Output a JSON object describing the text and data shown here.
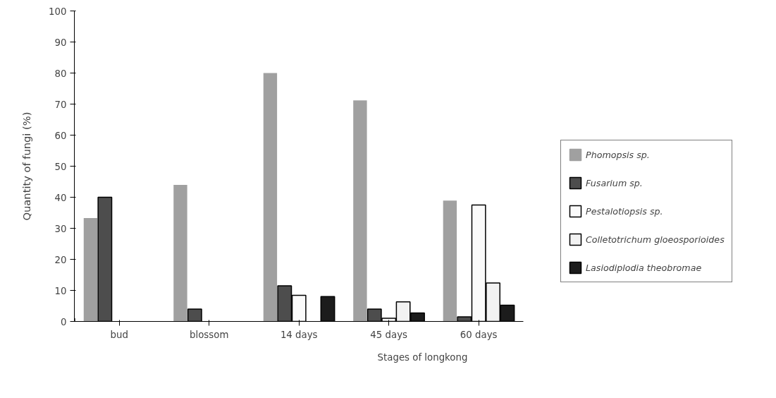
{
  "chart_data": {
    "type": "bar",
    "xlabel": "Stages of longkong",
    "ylabel": "Quantity of fungi (%)",
    "categories": [
      "bud",
      "blossom",
      "14 days",
      "45 days",
      "60 days"
    ],
    "series": [
      {
        "name": "Phomopsis sp.",
        "color": "#a0a0a0",
        "values": [
          33.3,
          44,
          80,
          71.2,
          38.9
        ]
      },
      {
        "name": "Fusarium sp.",
        "color": "#4d4d4d",
        "values": [
          40,
          4,
          11.5,
          4,
          1.5
        ]
      },
      {
        "name": "Pestalotiopsis sp.",
        "color": "#fafafa",
        "values": [
          0,
          0,
          8.4,
          1,
          37.5
        ]
      },
      {
        "name": "Colletotrichum gloeosporioides",
        "color": "#f2f2f2",
        "values": [
          0,
          0,
          0,
          6.3,
          12.4
        ]
      },
      {
        "name": "Lasiodiplodia theobromae",
        "color": "#1c1c1c",
        "values": [
          0,
          0,
          8,
          2.7,
          5.2
        ]
      }
    ],
    "ylim": [
      0,
      100
    ],
    "yticks": [
      0,
      10,
      20,
      30,
      40,
      50,
      60,
      70,
      80,
      90,
      100
    ],
    "grid": false,
    "legend": "right"
  }
}
